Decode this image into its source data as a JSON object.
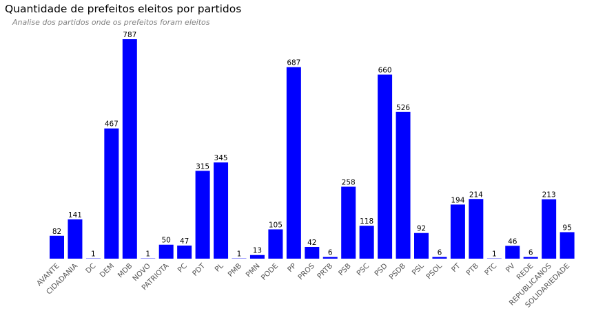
{
  "chart_data": {
    "type": "bar",
    "title": "Quantidade de prefeitos eleitos por partidos",
    "subtitle": "Analise dos partidos onde os prefeitos foram eleitos",
    "categories": [
      "AVANTE",
      "CIDADANIA",
      "DC",
      "DEM",
      "MDB",
      "NOVO",
      "PATRIOTA",
      "PC",
      "PDT",
      "PL",
      "PMB",
      "PMN",
      "PODE",
      "PP",
      "PROS",
      "PRTB",
      "PSB",
      "PSC",
      "PSD",
      "PSDB",
      "PSL",
      "PSOL",
      "PT",
      "PTB",
      "PTC",
      "PV",
      "REDE",
      "REPUBLICANOS",
      "SOLIDARIEDADE"
    ],
    "values": [
      82,
      141,
      1,
      467,
      787,
      1,
      50,
      47,
      315,
      345,
      1,
      13,
      105,
      687,
      42,
      6,
      258,
      118,
      660,
      526,
      92,
      6,
      194,
      214,
      1,
      46,
      6,
      213,
      95
    ],
    "bar_color": "#0000ff",
    "ylim": [
      0,
      810
    ],
    "grid": false,
    "legend": "none",
    "data_labels": true
  }
}
